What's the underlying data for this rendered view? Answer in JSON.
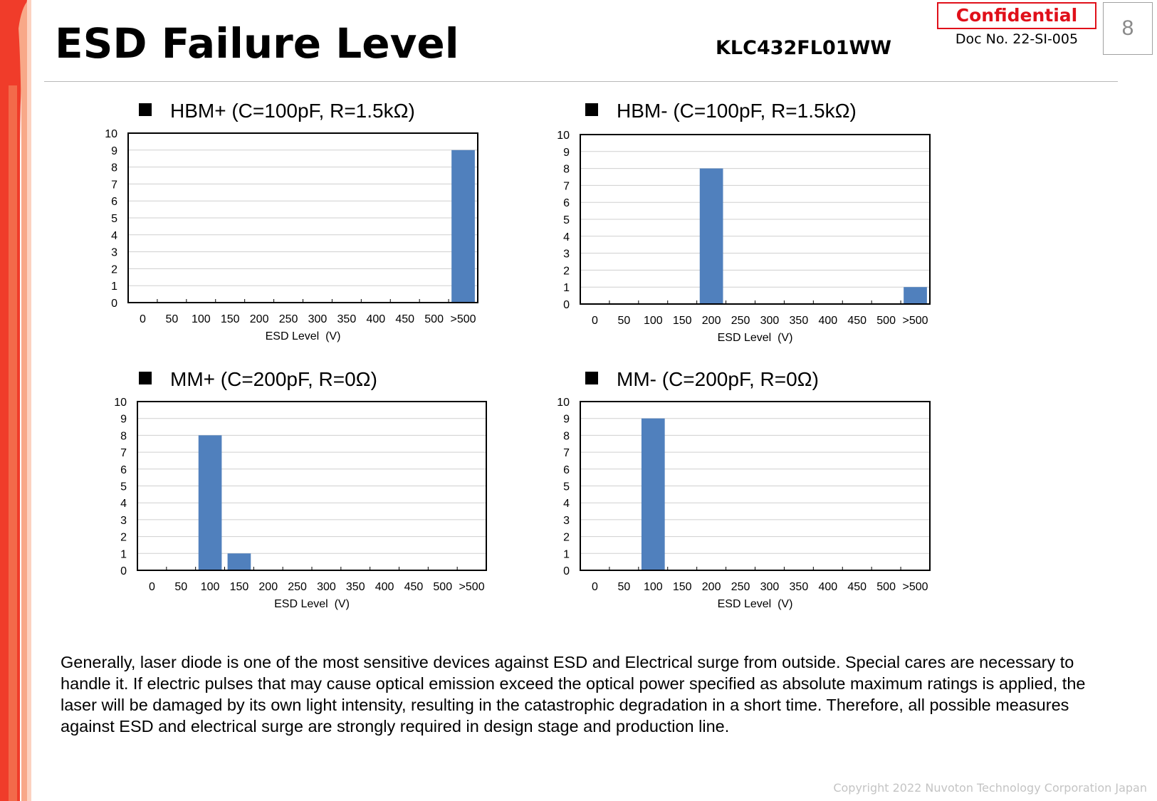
{
  "header": {
    "title": "ESD Failure Level",
    "model_number": "KLC432FL01WW",
    "confidential_label": "Confidential",
    "doc_number": "Doc No. 22-SI-005",
    "page_number": "8"
  },
  "colors": {
    "bar": "#5080bd",
    "confidential": "#e0101a",
    "accent_red": "#f03c2a"
  },
  "chart_data": [
    {
      "type": "bar",
      "title": "HBM+ (C=100pF, R=1.5kΩ)",
      "categories": [
        "0",
        "50",
        "100",
        "150",
        "200",
        "250",
        "300",
        "350",
        "400",
        "450",
        "500",
        ">500"
      ],
      "values": [
        0,
        0,
        0,
        0,
        0,
        0,
        0,
        0,
        0,
        0,
        0,
        9
      ],
      "xlabel": "ESD Level  (V)",
      "ylabel": "",
      "ylim": [
        0,
        10
      ],
      "yticks": [
        "0",
        "1",
        "2",
        "3",
        "4",
        "5",
        "6",
        "7",
        "8",
        "9",
        "10"
      ],
      "grid": true
    },
    {
      "type": "bar",
      "title": "HBM- (C=100pF, R=1.5kΩ)",
      "categories": [
        "0",
        "50",
        "100",
        "150",
        "200",
        "250",
        "300",
        "350",
        "400",
        "450",
        "500",
        ">500"
      ],
      "values": [
        0,
        0,
        0,
        0,
        8,
        0,
        0,
        0,
        0,
        0,
        0,
        1
      ],
      "xlabel": "ESD Level  (V)",
      "ylabel": "",
      "ylim": [
        0,
        10
      ],
      "yticks": [
        "0",
        "1",
        "2",
        "3",
        "4",
        "5",
        "6",
        "7",
        "8",
        "9",
        "10"
      ],
      "grid": true
    },
    {
      "type": "bar",
      "title": "MM+ (C=200pF, R=0Ω)",
      "categories": [
        "0",
        "50",
        "100",
        "150",
        "200",
        "250",
        "300",
        "350",
        "400",
        "450",
        "500",
        ">500"
      ],
      "values": [
        0,
        0,
        8,
        1,
        0,
        0,
        0,
        0,
        0,
        0,
        0,
        0
      ],
      "xlabel": "ESD Level  (V)",
      "ylabel": "",
      "ylim": [
        0,
        10
      ],
      "yticks": [
        "0",
        "1",
        "2",
        "3",
        "4",
        "5",
        "6",
        "7",
        "8",
        "9",
        "10"
      ],
      "grid": true
    },
    {
      "type": "bar",
      "title": "MM- (C=200pF, R=0Ω)",
      "categories": [
        "0",
        "50",
        "100",
        "150",
        "200",
        "250",
        "300",
        "350",
        "400",
        "450",
        "500",
        ">500"
      ],
      "values": [
        0,
        0,
        9,
        0,
        0,
        0,
        0,
        0,
        0,
        0,
        0,
        0
      ],
      "xlabel": "ESD Level  (V)",
      "ylabel": "",
      "ylim": [
        0,
        10
      ],
      "yticks": [
        "0",
        "1",
        "2",
        "3",
        "4",
        "5",
        "6",
        "7",
        "8",
        "9",
        "10"
      ],
      "grid": true
    }
  ],
  "description": "Generally, laser diode is one of the most sensitive devices against ESD and Electrical surge from outside. Special cares are necessary to handle it. If electric pulses that may cause optical emission exceed the optical power specified as absolute maximum ratings is applied, the laser will be damaged by its own light intensity, resulting in the catastrophic degradation in a short time. Therefore, all possible measures against ESD and electrical surge are strongly required in design stage and production line.",
  "footer": {
    "copyright": "Copyright 2022 Nuvoton Technology Corporation Japan"
  }
}
